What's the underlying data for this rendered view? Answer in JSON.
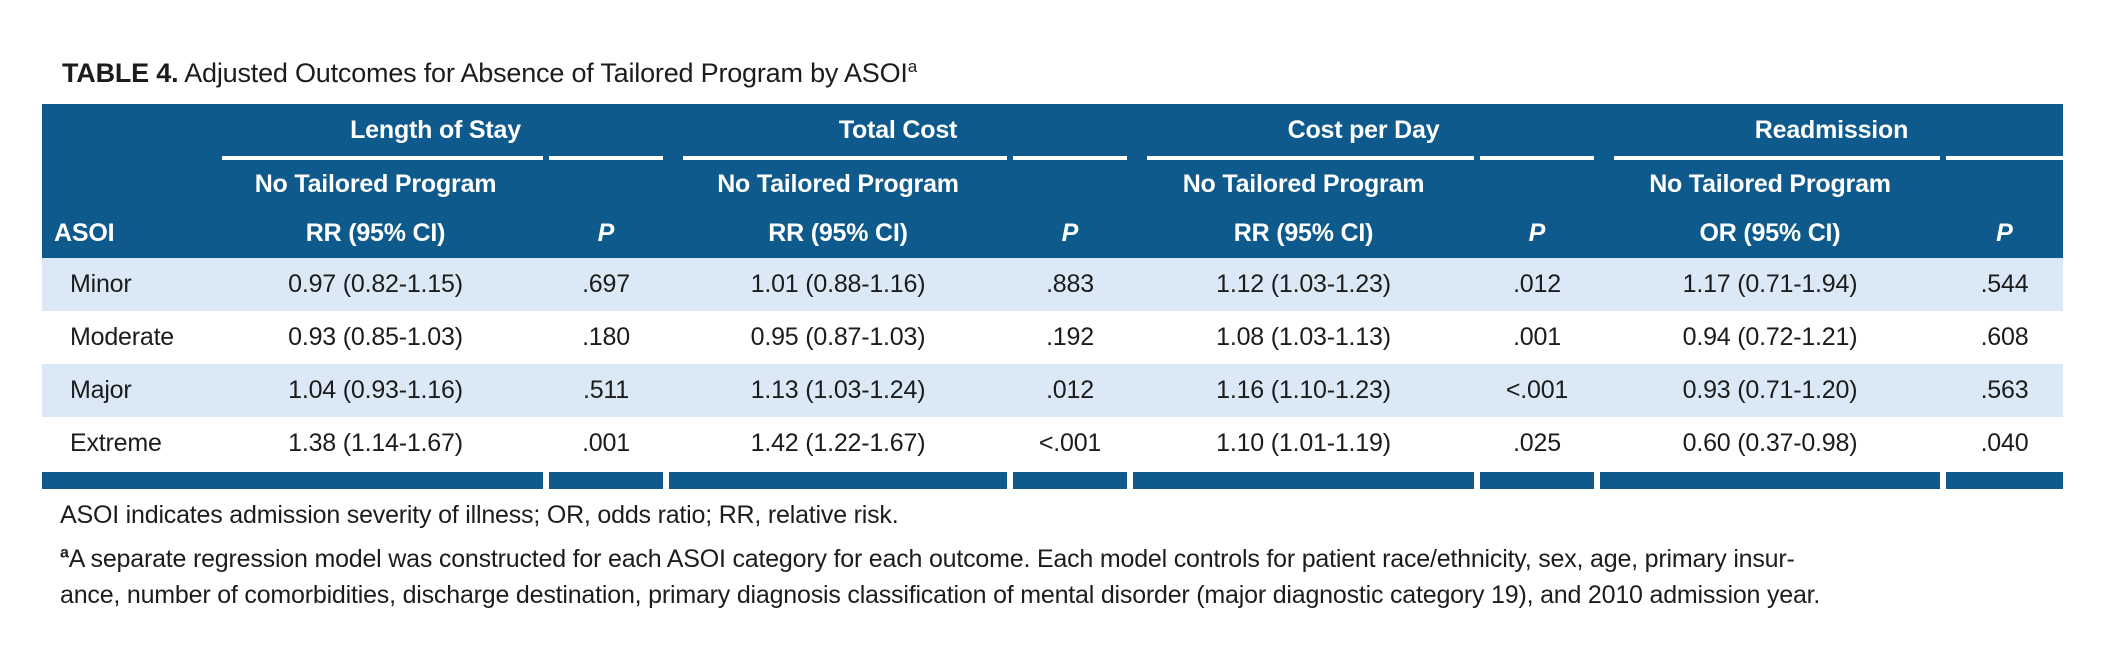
{
  "title": {
    "label": "TABLE 4.",
    "text": " Adjusted Outcomes for Absence of Tailored Program by ASOI",
    "superscript": "a"
  },
  "colors": {
    "header_navy": "#0e5a8c",
    "row_stripe": "#dbe8f5",
    "rule_white": "#ffffff",
    "text": "#1c1c1c"
  },
  "table": {
    "row_header": "ASOI",
    "groups": [
      {
        "label": "Length of Stay",
        "subheader_line1": "No Tailored Program",
        "subheader_line2": "RR (95% CI)",
        "p_label": "P"
      },
      {
        "label": "Total Cost",
        "subheader_line1": "No Tailored Program",
        "subheader_line2": "RR (95% CI)",
        "p_label": "P"
      },
      {
        "label": "Cost per Day",
        "subheader_line1": "No Tailored Program",
        "subheader_line2": "RR (95% CI)",
        "p_label": "P"
      },
      {
        "label": "Readmission",
        "subheader_line1": "No Tailored Program",
        "subheader_line2": "OR (95% CI)",
        "p_label": "P"
      }
    ],
    "rows": [
      {
        "asoi": "Minor",
        "cells": [
          {
            "estimate": "0.97 (0.82-1.15)",
            "p": ".697"
          },
          {
            "estimate": "1.01 (0.88-1.16)",
            "p": ".883"
          },
          {
            "estimate": "1.12 (1.03-1.23)",
            "p": ".012"
          },
          {
            "estimate": "1.17 (0.71-1.94)",
            "p": ".544"
          }
        ]
      },
      {
        "asoi": "Moderate",
        "cells": [
          {
            "estimate": "0.93 (0.85-1.03)",
            "p": ".180"
          },
          {
            "estimate": "0.95 (0.87-1.03)",
            "p": ".192"
          },
          {
            "estimate": "1.08 (1.03-1.13)",
            "p": ".001"
          },
          {
            "estimate": "0.94 (0.72-1.21)",
            "p": ".608"
          }
        ]
      },
      {
        "asoi": "Major",
        "cells": [
          {
            "estimate": "1.04 (0.93-1.16)",
            "p": ".511"
          },
          {
            "estimate": "1.13 (1.03-1.24)",
            "p": ".012"
          },
          {
            "estimate": "1.16 (1.10-1.23)",
            "p": "<.001"
          },
          {
            "estimate": "0.93 (0.71-1.20)",
            "p": ".563"
          }
        ]
      },
      {
        "asoi": "Extreme",
        "cells": [
          {
            "estimate": "1.38 (1.14-1.67)",
            "p": ".001"
          },
          {
            "estimate": "1.42 (1.22-1.67)",
            "p": "<.001"
          },
          {
            "estimate": "1.10 (1.01-1.19)",
            "p": ".025"
          },
          {
            "estimate": "0.60 (0.37-0.98)",
            "p": ".040"
          }
        ]
      }
    ]
  },
  "footnotes": {
    "abbreviations": "ASOI indicates admission severity of illness; OR, odds ratio; RR, relative risk.",
    "note_marker": "a",
    "note_line1": "A separate regression model was constructed for each ASOI category for each outcome. Each model controls for patient race/ethnicity, sex, age, primary insur-",
    "note_line2": "ance, number of comorbidities, discharge destination, primary diagnosis classification of mental disorder (major diagnostic category 19), and 2010 admission year."
  }
}
